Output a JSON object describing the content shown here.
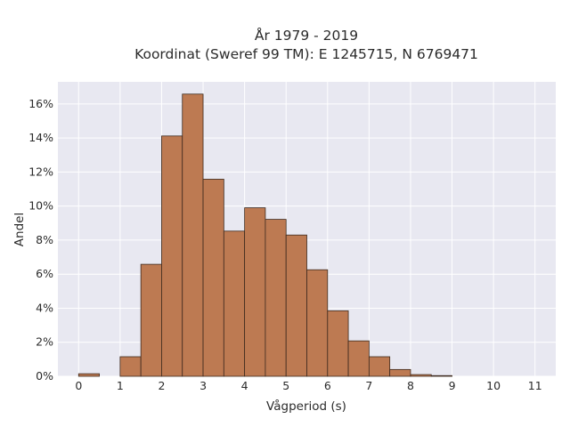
{
  "chart_data": {
    "type": "bar",
    "title_line1": "År 1979 - 2019",
    "title_line2": "Koordinat (Sweref 99 TM): E 1245715, N 6769471",
    "xlabel": "Vågperiod (s)",
    "ylabel": "Andel",
    "bin_width": 0.5,
    "bins": [
      {
        "start": 0.0,
        "value": 0.0015
      },
      {
        "start": 1.0,
        "value": 0.0115
      },
      {
        "start": 1.5,
        "value": 0.0658
      },
      {
        "start": 2.0,
        "value": 0.1412
      },
      {
        "start": 2.5,
        "value": 0.1658
      },
      {
        "start": 3.0,
        "value": 0.1158
      },
      {
        "start": 3.5,
        "value": 0.0853
      },
      {
        "start": 4.0,
        "value": 0.099
      },
      {
        "start": 4.5,
        "value": 0.0922
      },
      {
        "start": 5.0,
        "value": 0.083
      },
      {
        "start": 5.5,
        "value": 0.0626
      },
      {
        "start": 6.0,
        "value": 0.0385
      },
      {
        "start": 6.5,
        "value": 0.0208
      },
      {
        "start": 7.0,
        "value": 0.0115
      },
      {
        "start": 7.5,
        "value": 0.004
      },
      {
        "start": 8.0,
        "value": 0.001
      },
      {
        "start": 8.5,
        "value": 0.0004
      }
    ],
    "xlim": [
      -0.5,
      11.5
    ],
    "ylim": [
      0,
      0.173
    ],
    "x_ticks": [
      0,
      1,
      2,
      3,
      4,
      5,
      6,
      7,
      8,
      9,
      10,
      11
    ],
    "x_tick_labels": [
      "0",
      "1",
      "2",
      "3",
      "4",
      "5",
      "6",
      "7",
      "8",
      "9",
      "10",
      "11"
    ],
    "y_ticks": [
      0,
      0.02,
      0.04,
      0.06,
      0.08,
      0.1,
      0.12,
      0.14,
      0.16
    ],
    "y_tick_labels": [
      "0%",
      "2%",
      "4%",
      "6%",
      "8%",
      "10%",
      "12%",
      "14%",
      "16%"
    ],
    "grid": true,
    "colors": {
      "bar_fill": "#bd7a52",
      "bar_edge": "#3d2a1e",
      "plot_background": "#e8e8f1",
      "grid": "#ffffff"
    }
  }
}
